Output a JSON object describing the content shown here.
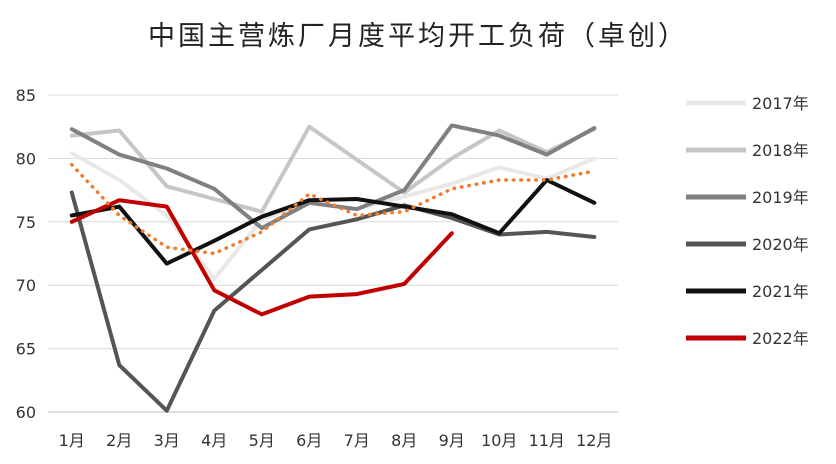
{
  "chart_data": {
    "type": "line",
    "title": "中国主营炼厂月度平均开工负荷（卓创）",
    "xlabel": "",
    "ylabel": "",
    "categories": [
      "1月",
      "2月",
      "3月",
      "4月",
      "5月",
      "6月",
      "7月",
      "8月",
      "9月",
      "10月",
      "11月",
      "12月"
    ],
    "y_ticks": [
      "60",
      "65",
      "70",
      "75",
      "80",
      "85"
    ],
    "ylim": [
      60,
      85
    ],
    "grid": "horizontal",
    "legend_position": "right",
    "series": [
      {
        "name": "2017年",
        "color": "#e8e8e8",
        "style": "solid",
        "values": [
          80.4,
          78.3,
          75.5,
          70.5,
          75.2,
          76.5,
          76.0,
          77.0,
          78.0,
          79.3,
          78.4,
          80.0
        ]
      },
      {
        "name": "2018年",
        "color": "#c6c6c6",
        "style": "solid",
        "values": [
          81.8,
          82.2,
          77.8,
          76.8,
          75.8,
          82.5,
          79.9,
          77.3,
          80.0,
          82.2,
          80.5,
          82.3
        ]
      },
      {
        "name": "2019年",
        "color": "#808080",
        "style": "solid",
        "values": [
          82.3,
          80.3,
          79.2,
          77.6,
          74.5,
          76.5,
          76.0,
          77.5,
          82.6,
          81.8,
          80.3,
          82.4
        ]
      },
      {
        "name": "2020年",
        "color": "#555555",
        "style": "solid",
        "values": [
          77.3,
          63.7,
          60.1,
          68.0,
          71.2,
          74.4,
          75.2,
          76.3,
          75.3,
          74.0,
          74.2,
          73.8
        ]
      },
      {
        "name": "2021年",
        "color": "#111111",
        "style": "solid",
        "values": [
          75.5,
          76.2,
          71.7,
          73.5,
          75.4,
          76.7,
          76.8,
          76.2,
          75.6,
          74.1,
          78.3,
          76.5
        ]
      },
      {
        "name": "2022年",
        "color": "#c00000",
        "style": "solid",
        "values": [
          75.0,
          76.7,
          76.2,
          69.6,
          67.7,
          69.1,
          69.3,
          70.1,
          74.1,
          null,
          null,
          null
        ]
      },
      {
        "name": "",
        "color": "#ed7d31",
        "style": "dotted",
        "values": [
          79.5,
          75.5,
          73.0,
          72.5,
          74.2,
          77.2,
          75.5,
          75.8,
          77.6,
          78.3,
          78.3,
          79.0
        ]
      }
    ]
  }
}
